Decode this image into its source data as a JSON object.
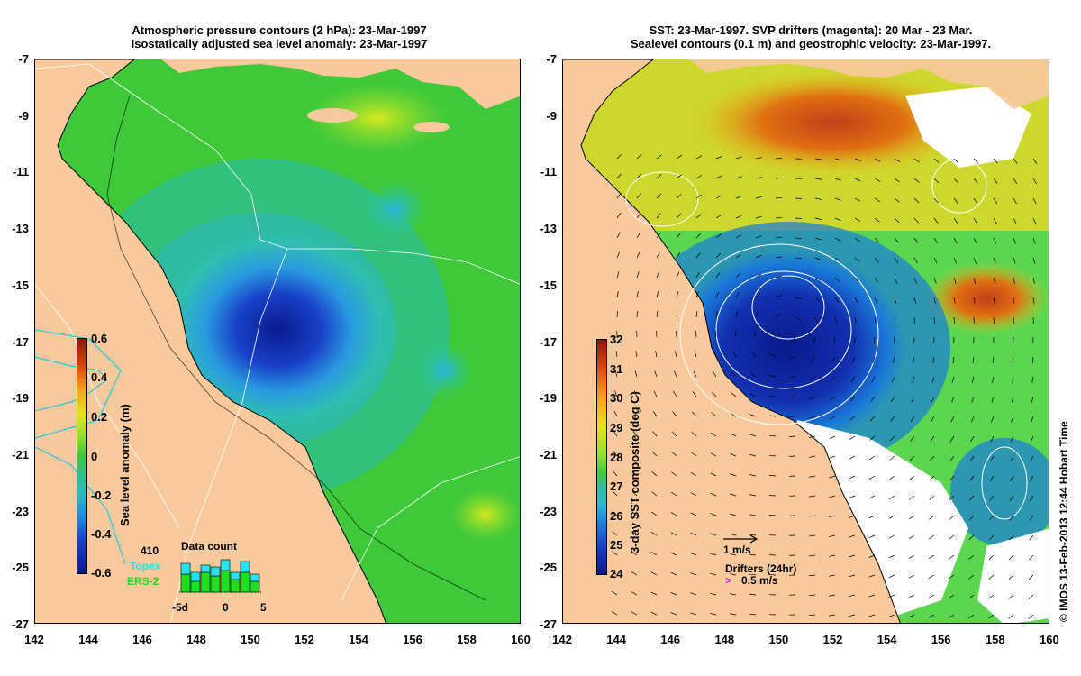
{
  "left": {
    "title_line1": "Atmospheric pressure contours (2 hPa): 23-Mar-1997",
    "title_line2": "Isostatically adjusted sea level anomaly: 23-Mar-1997",
    "colorbar_label": "Sea level anomaly (m)",
    "colorbar_ticks": [
      "0.6",
      "0.4",
      "0.2",
      "0",
      "-0.2",
      "-0.4",
      "-0.6"
    ],
    "data_count": {
      "title": "Data count",
      "total": "410",
      "series1": "Topex",
      "series2": "ERS-2",
      "xticks": [
        "-5d",
        "0",
        "5"
      ],
      "bars_topex": [
        0.3,
        0.25,
        0.2,
        0.25,
        0.3,
        0.2,
        0.3,
        0.2
      ],
      "bars_ers": [
        0.5,
        0.3,
        0.55,
        0.45,
        0.6,
        0.35,
        0.55,
        0.3
      ]
    },
    "color_land": "#f7c99c",
    "color_sea": "#5cd62c"
  },
  "right": {
    "title_line1": "SST: 23-Mar-1997. SVP drifters (magenta): 20 Mar - 23 Mar.",
    "title_line2": "Sealevel contours (0.1 m) and geostrophic velocity: 23-Mar-1997.",
    "colorbar_label": "3-day SST composite (deg C)",
    "colorbar_ticks": [
      "32",
      "31",
      "30",
      "29",
      "28",
      "27",
      "26",
      "25",
      "24"
    ],
    "scale_label": "1 m/s",
    "drifters_label": "Drifters (24hr)",
    "drifter_speed": "0.5 m/s"
  },
  "axes": {
    "y_ticks": [
      "-7",
      "-9",
      "-11",
      "-13",
      "-15",
      "-17",
      "-19",
      "-21",
      "-23",
      "-25",
      "-27"
    ],
    "x_ticks": [
      "142",
      "144",
      "146",
      "148",
      "150",
      "152",
      "154",
      "156",
      "158",
      "160"
    ]
  },
  "credit": "© IMOS 13-Feb-2013 12:44 Hobart Time"
}
